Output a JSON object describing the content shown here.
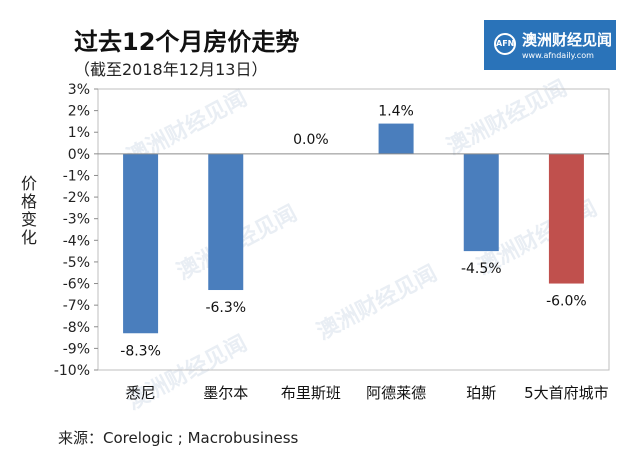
{
  "title": "过去12个月房价走势",
  "subtitle": "（截至2018年12月13日）",
  "logo": {
    "mark": "AFN",
    "name": "澳洲财经见闻",
    "url": "www.afndaily.com"
  },
  "watermark": "澳洲财经见闻",
  "source": "来源：Corelogic ; Macrobusiness",
  "chart_data": {
    "type": "bar",
    "title": "过去12个月房价走势",
    "ylabel": "价格变化",
    "xlabel": "",
    "ylim": [
      -10,
      3
    ],
    "yticks": [
      "3%",
      "2%",
      "1%",
      "0%",
      "-1%",
      "-2%",
      "-3%",
      "-4%",
      "-5%",
      "-6%",
      "-7%",
      "-8%",
      "-9%",
      "-10%"
    ],
    "grid": false,
    "legend": "none",
    "categories": [
      "悉尼",
      "墨尔本",
      "布里斯班",
      "阿德莱德",
      "珀斯",
      "5大首府城市"
    ],
    "values": [
      -8.3,
      -6.3,
      0.0,
      1.4,
      -4.5,
      -6.0
    ],
    "data_labels": [
      "-8.3%",
      "-6.3%",
      "0.0%",
      "1.4%",
      "-4.5%",
      "-6.0%"
    ],
    "colors": [
      "#4a7ebd",
      "#4a7ebd",
      "#4a7ebd",
      "#4a7ebd",
      "#4a7ebd",
      "#c0504d"
    ]
  }
}
